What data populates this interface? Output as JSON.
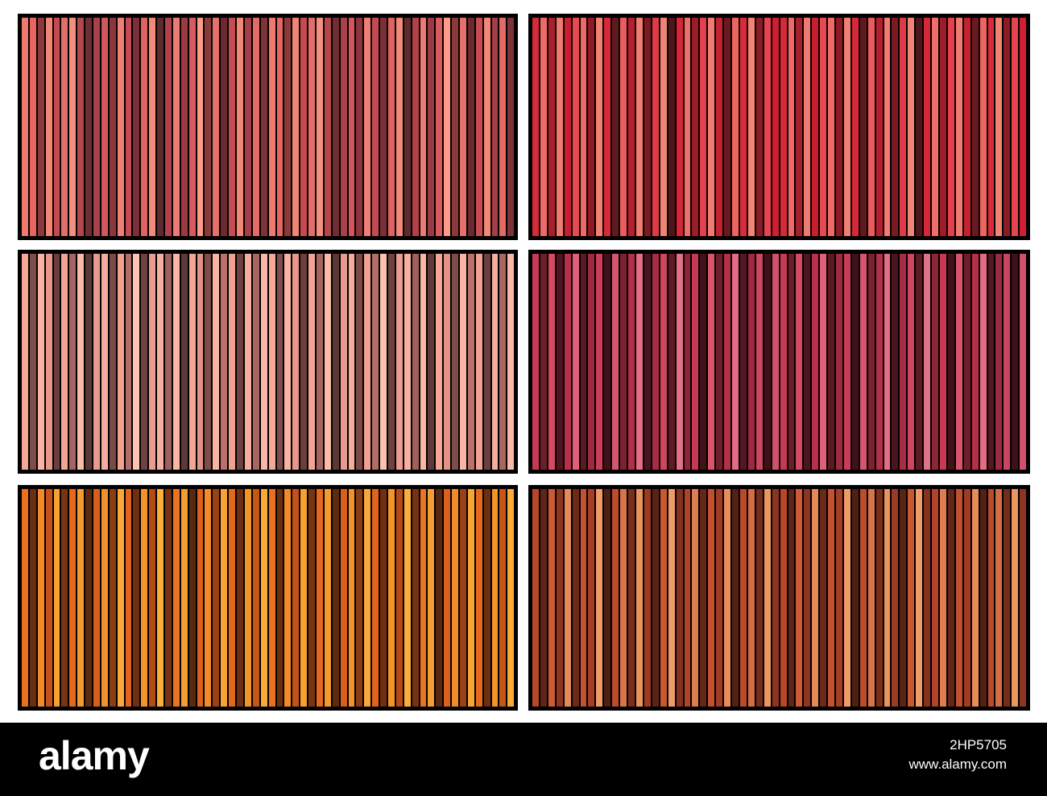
{
  "palettes": [
    {
      "name": "salmon-rose",
      "colors": [
        "#f07a70",
        "#e8665f",
        "#8a3a3a",
        "#f08574",
        "#c84a4e",
        "#e36d6a",
        "#f49080",
        "#b5474b",
        "#6e2e33",
        "#a9404a",
        "#d3565c",
        "#8c363c",
        "#ef7e74",
        "#c54a52",
        "#7a3036",
        "#e06361",
        "#f28a7a",
        "#5d2a2e",
        "#b34049",
        "#ee7b73",
        "#9c3a42",
        "#d85a5e",
        "#ff9a86",
        "#8b3a3c",
        "#e5716b",
        "#6a2b30",
        "#c64c53",
        "#f38776",
        "#a43e47",
        "#e46a66",
        "#7d3337"
      ]
    },
    {
      "name": "crimson-red",
      "colors": [
        "#d42a3a",
        "#ef6a66",
        "#a8202c",
        "#f07a70",
        "#c81e30",
        "#e84a52",
        "#ef6a66",
        "#8e1a24",
        "#f08070",
        "#d9283a",
        "#5e1a1e",
        "#ec5b5e",
        "#b51f2e",
        "#f27c70",
        "#7a1b22",
        "#e13a47",
        "#f08575",
        "#4e1618",
        "#d62637",
        "#ef6e68",
        "#9a1d28",
        "#e5404c",
        "#f27a70",
        "#c5222f",
        "#6a191f",
        "#ee6560",
        "#db2b3b",
        "#f38373",
        "#8a1c25",
        "#e84450",
        "#d01f31"
      ]
    },
    {
      "name": "dusty-pink",
      "colors": [
        "#f5a898",
        "#7d4d4a",
        "#f8b3a3",
        "#e8968a",
        "#6a3f3d",
        "#f3a493",
        "#a46560",
        "#f9baa8",
        "#5c3835",
        "#e79a8d",
        "#f6ac9c",
        "#7a4a47",
        "#f2a08f",
        "#b06e67",
        "#fbc2b0",
        "#6d4240",
        "#ec9c8f",
        "#f7b09f",
        "#a05f5a",
        "#fab6a5",
        "#5e3937",
        "#f4a595",
        "#e29385",
        "#7e4c49",
        "#f8b5a4",
        "#b87269",
        "#f1a191",
        "#6b403e",
        "#f6ad9d",
        "#a8665f",
        "#f9b8a7"
      ]
    },
    {
      "name": "wine-burgundy",
      "colors": [
        "#c73a55",
        "#6b1f2a",
        "#d54a63",
        "#4e1520",
        "#b8304b",
        "#e0607a",
        "#5a1a24",
        "#9c2a40",
        "#c93d58",
        "#3f111a",
        "#d75570",
        "#7a2230",
        "#b33049",
        "#e56e86",
        "#4a1520",
        "#a72c44",
        "#cf4560",
        "#5e1b26",
        "#e27088",
        "#8d2538",
        "#c63853",
        "#421219",
        "#d9546d",
        "#6e1f2b",
        "#b42f48",
        "#e46b84",
        "#531823",
        "#9f2940",
        "#cd4661",
        "#3e1018",
        "#d1506a"
      ]
    },
    {
      "name": "amber-orange",
      "colors": [
        "#e8701e",
        "#6a2e10",
        "#f08a2a",
        "#c4501a",
        "#f7a030",
        "#7a3412",
        "#e6681c",
        "#f59a2e",
        "#5e2a0e",
        "#d85e1a",
        "#f2902a",
        "#8a3c14",
        "#f8a83a",
        "#e2641c",
        "#6e3010",
        "#f49428",
        "#b54a18",
        "#fbae3c",
        "#763212",
        "#ea741f",
        "#f59c30",
        "#5a280e",
        "#dc601b",
        "#f18c28",
        "#9a4216",
        "#f6a434",
        "#e36a1d",
        "#6c2f10",
        "#f39429",
        "#c85518",
        "#f9aa36"
      ]
    },
    {
      "name": "rust-brown",
      "colors": [
        "#b8472a",
        "#5e2418",
        "#cc5a36",
        "#8e3522",
        "#e48a5a",
        "#6a2a1a",
        "#c45230",
        "#a43e25",
        "#f09a68",
        "#4e2015",
        "#bd4c2d",
        "#d8744a",
        "#7a2f1d",
        "#e9945f",
        "#9c3a24",
        "#5a2317",
        "#c9582f",
        "#ef9c6a",
        "#84321f",
        "#b0442a",
        "#de7e50",
        "#632719",
        "#c24f2f",
        "#a03c25",
        "#e88c5a",
        "#522116",
        "#ba4a2c",
        "#d46c44",
        "#742d1c",
        "#eb955f",
        "#8c3621"
      ]
    }
  ],
  "footer": {
    "brand": "alamy",
    "image_id": "2HP5705",
    "site": "www.alamy.com"
  }
}
